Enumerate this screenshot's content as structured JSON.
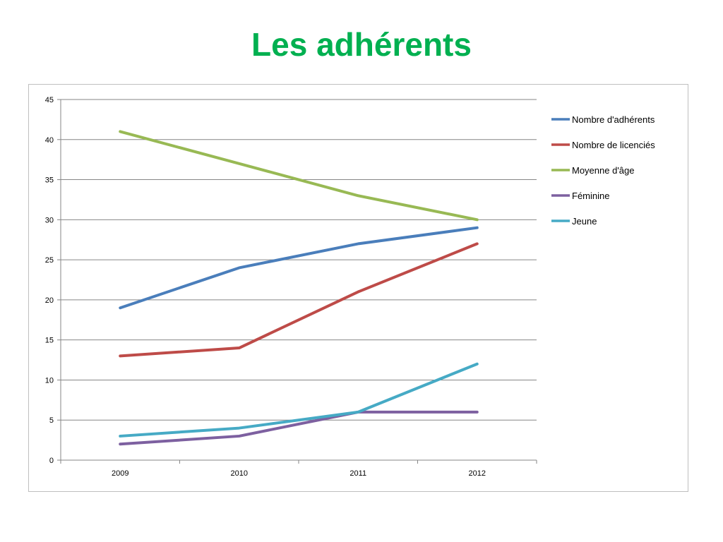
{
  "slide": {
    "title": "Les adhérents"
  },
  "chart_data": {
    "type": "line",
    "categories": [
      "2009",
      "2010",
      "2011",
      "2012"
    ],
    "ylim": [
      0,
      45
    ],
    "yticks": [
      0,
      5,
      10,
      15,
      20,
      25,
      30,
      35,
      40,
      45
    ],
    "grid": true,
    "legend_position": "right",
    "series": [
      {
        "name": "Nombre d'adhérents",
        "color": "#4a7ebb",
        "values": [
          19,
          24,
          27,
          29
        ]
      },
      {
        "name": "Nombre de licenciés",
        "color": "#be4b48",
        "values": [
          13,
          14,
          21,
          27
        ]
      },
      {
        "name": "Moyenne d'âge",
        "color": "#98b954",
        "values": [
          41,
          37,
          33,
          30
        ]
      },
      {
        "name": "Féminine",
        "color": "#7d60a0",
        "values": [
          2,
          3,
          6,
          6
        ]
      },
      {
        "name": "Jeune",
        "color": "#46aac5",
        "values": [
          3,
          4,
          6,
          12
        ]
      }
    ]
  }
}
